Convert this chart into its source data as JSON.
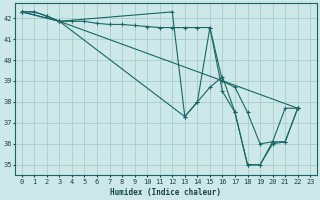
{
  "xlabel": "Humidex (Indice chaleur)",
  "bg_color": "#cce8e8",
  "grid_color": "#aacccc",
  "line_color": "#1a6666",
  "xlim": [
    -0.5,
    23.5
  ],
  "ylim": [
    34.5,
    42.7
  ],
  "yticks": [
    35,
    36,
    37,
    38,
    39,
    40,
    41,
    42
  ],
  "xticks": [
    0,
    1,
    2,
    3,
    4,
    5,
    6,
    7,
    8,
    9,
    10,
    11,
    12,
    13,
    14,
    15,
    16,
    17,
    18,
    19,
    20,
    21,
    22,
    23
  ],
  "series": [
    [
      [
        0,
        42.3
      ],
      [
        1,
        42.3
      ],
      [
        2,
        42.1
      ],
      [
        3,
        41.85
      ],
      [
        4,
        41.85
      ],
      [
        5,
        41.85
      ],
      [
        6,
        41.75
      ],
      [
        7,
        41.7
      ],
      [
        8,
        41.7
      ],
      [
        9,
        41.65
      ],
      [
        10,
        41.6
      ],
      [
        11,
        41.55
      ],
      [
        12,
        41.55
      ],
      [
        13,
        41.55
      ],
      [
        14,
        41.55
      ],
      [
        15,
        41.55
      ],
      [
        16,
        39.0
      ],
      [
        17,
        38.7
      ],
      [
        18,
        37.5
      ],
      [
        19,
        36.0
      ],
      [
        20,
        36.1
      ],
      [
        21,
        37.7
      ],
      [
        22,
        37.7
      ]
    ],
    [
      [
        0,
        42.3
      ],
      [
        1,
        42.3
      ],
      [
        2,
        42.1
      ],
      [
        3,
        41.85
      ],
      [
        12,
        42.3
      ],
      [
        13,
        37.3
      ],
      [
        14,
        38.0
      ],
      [
        15,
        41.55
      ],
      [
        16,
        38.5
      ],
      [
        17,
        37.5
      ],
      [
        18,
        35.0
      ],
      [
        19,
        35.0
      ],
      [
        20,
        36.0
      ],
      [
        21,
        36.1
      ],
      [
        22,
        37.7
      ]
    ],
    [
      [
        0,
        42.3
      ],
      [
        3,
        41.85
      ],
      [
        22,
        37.7
      ]
    ],
    [
      [
        0,
        42.3
      ],
      [
        3,
        41.85
      ],
      [
        13,
        37.3
      ],
      [
        14,
        38.0
      ],
      [
        15,
        38.7
      ],
      [
        16,
        39.2
      ],
      [
        17,
        37.5
      ],
      [
        18,
        35.0
      ],
      [
        19,
        35.0
      ],
      [
        20,
        36.1
      ],
      [
        21,
        36.1
      ],
      [
        22,
        37.7
      ]
    ]
  ]
}
